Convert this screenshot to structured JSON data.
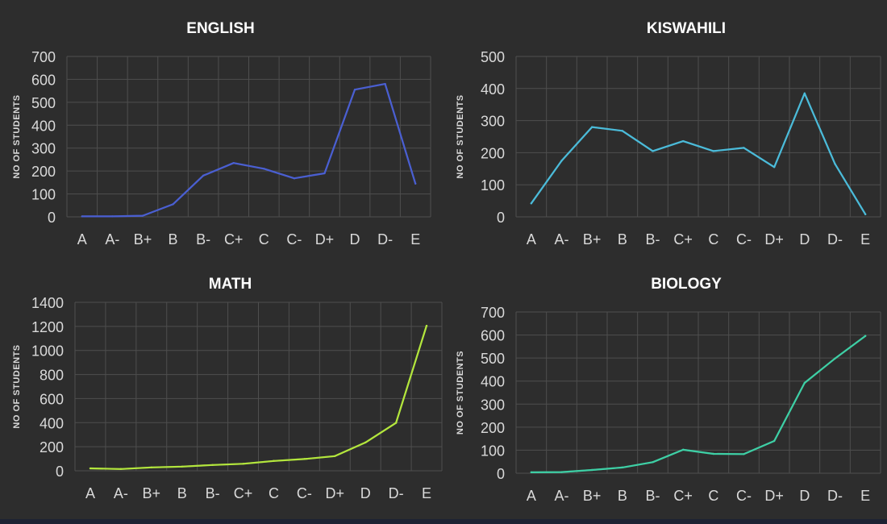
{
  "chart_data": [
    {
      "type": "line",
      "title": "ENGLISH",
      "ylabel": "NO OF STUDENTS",
      "xlabel": "",
      "categories": [
        "A",
        "A-",
        "B+",
        "B",
        "B-",
        "C+",
        "C",
        "C-",
        "D+",
        "D",
        "D-",
        "E"
      ],
      "yticks": [
        0,
        100,
        200,
        300,
        400,
        500,
        600,
        700
      ],
      "ylim": [
        0,
        700
      ],
      "grid": true,
      "color": "#4a5fd1",
      "series": [
        {
          "values": [
            2,
            2,
            5,
            55,
            180,
            235,
            210,
            168,
            190,
            555,
            580,
            145
          ]
        }
      ]
    },
    {
      "type": "line",
      "title": "KISWAHILI",
      "ylabel": "NO OF STUDENTS",
      "xlabel": "",
      "categories": [
        "A",
        "A-",
        "B+",
        "B",
        "B-",
        "C+",
        "C",
        "C-",
        "D+",
        "D",
        "D-",
        "E"
      ],
      "yticks": [
        0,
        100,
        200,
        300,
        400,
        500
      ],
      "ylim": [
        0,
        500
      ],
      "grid": true,
      "color": "#4bbbd9",
      "series": [
        {
          "values": [
            42,
            175,
            280,
            268,
            205,
            236,
            205,
            215,
            155,
            385,
            165,
            8
          ]
        }
      ]
    },
    {
      "type": "line",
      "title": "MATH",
      "ylabel": "NO OF STUDENTS",
      "xlabel": "",
      "categories": [
        "A",
        "A-",
        "B+",
        "B",
        "B-",
        "C+",
        "C",
        "C-",
        "D+",
        "D",
        "D-",
        "E"
      ],
      "yticks": [
        0,
        200,
        400,
        600,
        800,
        1000,
        1200,
        1400
      ],
      "ylim": [
        0,
        1400
      ],
      "grid": true,
      "color": "#b3e63d",
      "series": [
        {
          "values": [
            20,
            15,
            28,
            35,
            48,
            58,
            82,
            98,
            122,
            235,
            398,
            1205
          ]
        }
      ]
    },
    {
      "type": "line",
      "title": "BIOLOGY",
      "ylabel": "NO OF STUDENTS",
      "xlabel": "",
      "categories": [
        "A",
        "A-",
        "B+",
        "B",
        "B-",
        "C+",
        "C",
        "C-",
        "D+",
        "D",
        "D-",
        "E"
      ],
      "yticks": [
        0,
        100,
        200,
        300,
        400,
        500,
        600,
        700
      ],
      "ylim": [
        0,
        700
      ],
      "grid": true,
      "color": "#3ecfa5",
      "series": [
        {
          "values": [
            4,
            5,
            14,
            25,
            48,
            102,
            84,
            83,
            140,
            392,
            498,
            596
          ]
        }
      ]
    }
  ]
}
